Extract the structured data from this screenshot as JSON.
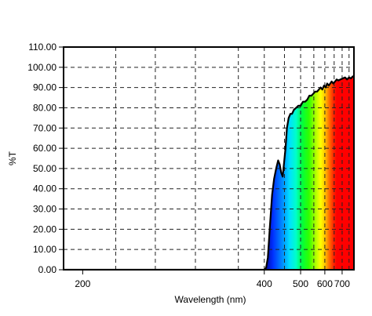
{
  "chart_data": {
    "type": "area",
    "xlabel": "Wavelength (nm)",
    "ylabel": "%T",
    "x_scale": "reciprocal",
    "xlim": [
      190,
      790
    ],
    "ylim": [
      0,
      110
    ],
    "x_ticks": [
      200,
      400,
      500,
      600,
      700
    ],
    "x_tick_labels": [
      "200",
      "400",
      "500",
      "600",
      "700"
    ],
    "x_gridlines": [
      220,
      250,
      290,
      350,
      400,
      450,
      500,
      550,
      600,
      650,
      700,
      750
    ],
    "y_ticks": [
      0,
      10,
      20,
      30,
      40,
      50,
      60,
      70,
      80,
      90,
      100,
      110
    ],
    "y_tick_labels": [
      "0.00",
      "10.00",
      "20.00",
      "30.00",
      "40.00",
      "50.00",
      "60.00",
      "70.00",
      "80.00",
      "90.00",
      "100.00",
      "110.00"
    ],
    "grid": true,
    "fill": "visible-spectrum",
    "series": [
      {
        "x": [
          190,
          395,
          400,
          404,
          408,
          413,
          418,
          423,
          428,
          433,
          437,
          441,
          445,
          449,
          453,
          457,
          462,
          467,
          472,
          478,
          485,
          492,
          500,
          508,
          516,
          524,
          532,
          540,
          548,
          556,
          564,
          572,
          580,
          588,
          596,
          604,
          612,
          620,
          628,
          636,
          645,
          655,
          665,
          675,
          690,
          705,
          720,
          735,
          750,
          765,
          780,
          790
        ],
        "y": [
          0,
          0,
          0,
          1,
          6,
          22,
          37,
          45,
          50,
          54,
          52,
          48,
          46,
          53,
          60,
          70,
          75,
          77,
          77,
          79,
          80,
          81,
          81,
          83,
          83,
          84,
          86,
          86,
          87,
          88,
          88,
          89,
          90,
          89,
          91,
          90,
          92,
          91,
          92,
          93,
          92,
          93,
          94,
          93.5,
          94,
          94.5,
          95,
          94,
          95,
          94.5,
          95.5,
          95
        ]
      }
    ]
  }
}
